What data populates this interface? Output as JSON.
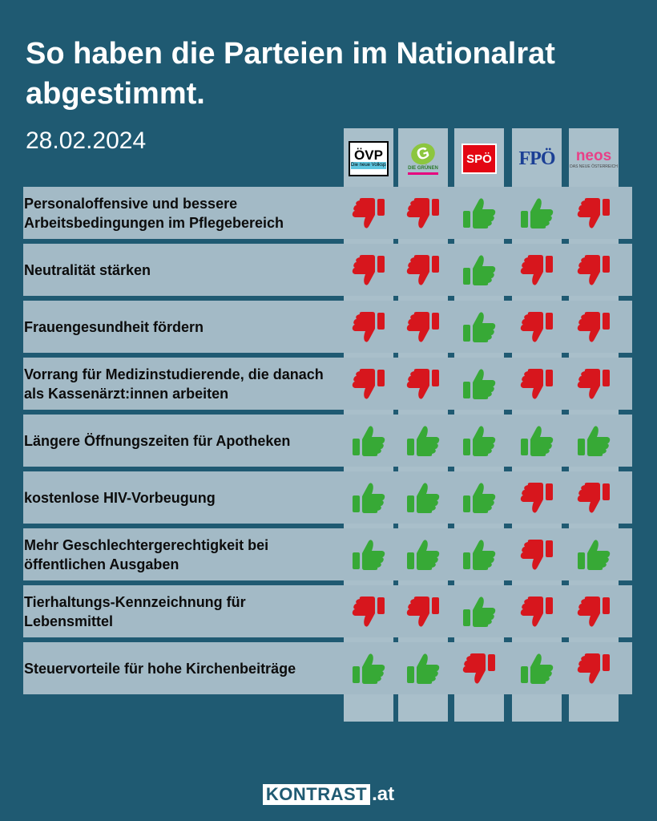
{
  "title": "So haben die Parteien im Nationalrat abgestimmt.",
  "date": "28.02.2024",
  "colors": {
    "yes": "#37a936",
    "no": "#d7161d",
    "background": "#1f5a72"
  },
  "parties": [
    {
      "id": "oevp",
      "label": "ÖVP",
      "sub": "Die neue Volkspartei"
    },
    {
      "id": "gruene",
      "label": "G",
      "sub": "DIE GRÜNEN"
    },
    {
      "id": "spoe",
      "label": "SPÖ"
    },
    {
      "id": "fpoe",
      "label": "FPÖ"
    },
    {
      "id": "neos",
      "label": "neos",
      "sub": "DAS NEUE ÖSTERREICH"
    }
  ],
  "votes": [
    {
      "label": "Personaloffensive und bessere Arbeitsbedingungen im Pflegebereich",
      "votes": [
        "no",
        "no",
        "yes",
        "yes",
        "no"
      ]
    },
    {
      "label": "Neutralität stärken",
      "votes": [
        "no",
        "no",
        "yes",
        "no",
        "no"
      ]
    },
    {
      "label": "Frauengesundheit fördern",
      "votes": [
        "no",
        "no",
        "yes",
        "no",
        "no"
      ]
    },
    {
      "label": "Vorrang für Medizinstudierende, die danach als Kassenärzt:innen arbeiten",
      "votes": [
        "no",
        "no",
        "yes",
        "no",
        "no"
      ]
    },
    {
      "label": "Längere Öffnungszeiten für Apotheken",
      "votes": [
        "yes",
        "yes",
        "yes",
        "yes",
        "yes"
      ]
    },
    {
      "label": "kostenlose HIV-Vorbeugung",
      "votes": [
        "yes",
        "yes",
        "yes",
        "no",
        "no"
      ]
    },
    {
      "label": "Mehr Geschlechtergerechtigkeit bei öffentlichen Ausgaben",
      "votes": [
        "yes",
        "yes",
        "yes",
        "no",
        "yes"
      ]
    },
    {
      "label": "Tierhaltungs-Kennzeichnung für Lebensmittel",
      "votes": [
        "no",
        "no",
        "yes",
        "no",
        "no"
      ]
    },
    {
      "label": "Steuervorteile für hohe Kirchenbeiträge",
      "votes": [
        "yes",
        "yes",
        "no",
        "yes",
        "no"
      ]
    }
  ],
  "footer": {
    "brand": "KONTRAST",
    "tld": ".at"
  }
}
